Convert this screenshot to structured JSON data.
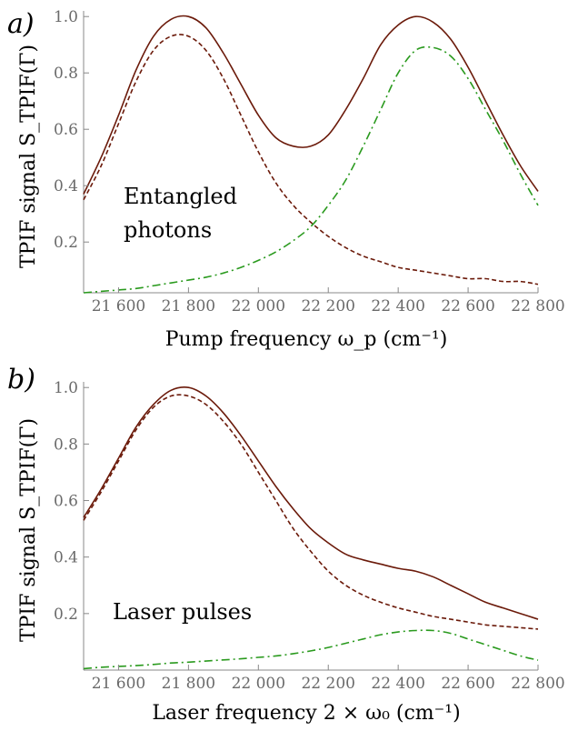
{
  "chart_data": [
    {
      "type": "line",
      "panel_label": "a)",
      "ylabel": "TPIF signal S_TPIF(Γ)",
      "xlabel": "Pump frequency ω_p (cm⁻¹)",
      "annotation": [
        "Entangled",
        "photons"
      ],
      "xlim": [
        21500,
        22800
      ],
      "ylim": [
        0.02,
        1.02
      ],
      "xticks": [
        21600,
        21800,
        22000,
        22200,
        22400,
        22600,
        22800
      ],
      "xtick_labels": [
        "21 600",
        "21 800",
        "22 000",
        "22 200",
        "22 400",
        "22 600",
        "22 800"
      ],
      "yticks": [
        0.2,
        0.4,
        0.6,
        0.8,
        1.0
      ],
      "ytick_labels": [
        "0.2",
        "0.4",
        "0.6",
        "0.8",
        "1.0"
      ],
      "grid": false,
      "series": [
        {
          "style": "solid",
          "color": "#6b1a0a",
          "x": [
            21500,
            21550,
            21600,
            21650,
            21700,
            21750,
            21800,
            21850,
            21900,
            21950,
            22000,
            22050,
            22100,
            22150,
            22200,
            22250,
            22300,
            22350,
            22400,
            22450,
            22500,
            22550,
            22600,
            22650,
            22700,
            22750,
            22800
          ],
          "y": [
            0.37,
            0.5,
            0.65,
            0.81,
            0.93,
            0.99,
            1.0,
            0.96,
            0.87,
            0.76,
            0.65,
            0.57,
            0.54,
            0.54,
            0.58,
            0.67,
            0.78,
            0.9,
            0.97,
            1.0,
            0.98,
            0.92,
            0.82,
            0.7,
            0.58,
            0.47,
            0.38
          ]
        },
        {
          "style": "dashed",
          "color": "#6b1a0a",
          "x": [
            21500,
            21550,
            21600,
            21650,
            21700,
            21750,
            21800,
            21850,
            21900,
            21950,
            22000,
            22050,
            22100,
            22150,
            22200,
            22250,
            22300,
            22350,
            22400,
            22450,
            22500,
            22550,
            22600,
            22650,
            22700,
            22750,
            22800
          ],
          "y": [
            0.35,
            0.47,
            0.62,
            0.77,
            0.88,
            0.93,
            0.93,
            0.88,
            0.78,
            0.65,
            0.52,
            0.41,
            0.33,
            0.27,
            0.22,
            0.18,
            0.15,
            0.13,
            0.11,
            0.1,
            0.09,
            0.08,
            0.07,
            0.07,
            0.06,
            0.06,
            0.05
          ]
        },
        {
          "style": "dashdot",
          "color": "#2a9a1e",
          "x": [
            21500,
            21550,
            21600,
            21650,
            21700,
            21750,
            21800,
            21850,
            21900,
            21950,
            22000,
            22050,
            22100,
            22150,
            22200,
            22250,
            22300,
            22350,
            22400,
            22450,
            22500,
            22550,
            22600,
            22650,
            22700,
            22750,
            22800
          ],
          "y": [
            0.02,
            0.025,
            0.03,
            0.035,
            0.045,
            0.055,
            0.065,
            0.075,
            0.09,
            0.11,
            0.135,
            0.165,
            0.205,
            0.255,
            0.33,
            0.42,
            0.54,
            0.67,
            0.8,
            0.88,
            0.89,
            0.86,
            0.78,
            0.67,
            0.56,
            0.44,
            0.33
          ]
        }
      ]
    },
    {
      "type": "line",
      "panel_label": "b)",
      "ylabel": "TPIF signal S_TPIF(Γ)",
      "xlabel": "Laser frequency 2 × ω₀ (cm⁻¹)",
      "annotation": [
        "Laser pulses"
      ],
      "xlim": [
        21500,
        22800
      ],
      "ylim": [
        0.0,
        1.02
      ],
      "xticks": [
        21600,
        21800,
        22000,
        22200,
        22400,
        22600,
        22800
      ],
      "xtick_labels": [
        "21 600",
        "21 800",
        "22 000",
        "22 200",
        "22 400",
        "22 600",
        "22 800"
      ],
      "yticks": [
        0.2,
        0.4,
        0.6,
        0.8,
        1.0
      ],
      "ytick_labels": [
        "0.2",
        "0.4",
        "0.6",
        "0.8",
        "1.0"
      ],
      "grid": false,
      "series": [
        {
          "style": "solid",
          "color": "#6b1a0a",
          "x": [
            21500,
            21550,
            21600,
            21650,
            21700,
            21750,
            21800,
            21850,
            21900,
            21950,
            22000,
            22050,
            22100,
            22150,
            22200,
            22250,
            22300,
            22350,
            22400,
            22450,
            22500,
            22550,
            22600,
            22650,
            22700,
            22750,
            22800
          ],
          "y": [
            0.54,
            0.64,
            0.75,
            0.86,
            0.94,
            0.99,
            1.0,
            0.97,
            0.91,
            0.83,
            0.74,
            0.65,
            0.57,
            0.5,
            0.45,
            0.41,
            0.39,
            0.375,
            0.36,
            0.35,
            0.33,
            0.3,
            0.27,
            0.24,
            0.22,
            0.2,
            0.18
          ]
        },
        {
          "style": "dashed",
          "color": "#6b1a0a",
          "x": [
            21500,
            21550,
            21600,
            21650,
            21700,
            21750,
            21800,
            21850,
            21900,
            21950,
            22000,
            22050,
            22100,
            22150,
            22200,
            22250,
            22300,
            22350,
            22400,
            22450,
            22500,
            22550,
            22600,
            22650,
            22700,
            22750,
            22800
          ],
          "y": [
            0.53,
            0.63,
            0.74,
            0.85,
            0.93,
            0.97,
            0.97,
            0.94,
            0.88,
            0.8,
            0.7,
            0.6,
            0.5,
            0.42,
            0.35,
            0.3,
            0.265,
            0.24,
            0.22,
            0.205,
            0.19,
            0.18,
            0.17,
            0.16,
            0.155,
            0.15,
            0.145
          ]
        },
        {
          "style": "dashdot",
          "color": "#2a9a1e",
          "x": [
            21500,
            21550,
            21600,
            21650,
            21700,
            21750,
            21800,
            21850,
            21900,
            21950,
            22000,
            22050,
            22100,
            22150,
            22200,
            22250,
            22300,
            22350,
            22400,
            22450,
            22500,
            22550,
            22600,
            22650,
            22700,
            22750,
            22800
          ],
          "y": [
            0.005,
            0.01,
            0.013,
            0.016,
            0.02,
            0.025,
            0.028,
            0.032,
            0.036,
            0.04,
            0.045,
            0.05,
            0.058,
            0.068,
            0.08,
            0.095,
            0.11,
            0.125,
            0.135,
            0.14,
            0.14,
            0.13,
            0.11,
            0.09,
            0.07,
            0.05,
            0.035
          ]
        }
      ]
    }
  ]
}
